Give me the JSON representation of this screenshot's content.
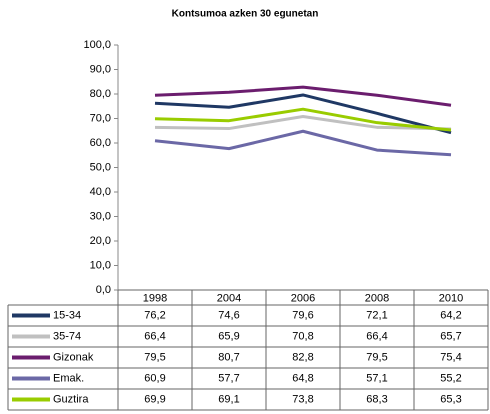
{
  "chart_data": {
    "type": "line",
    "title": "Kontsumoa azken 30 egunetan",
    "categories": [
      "1998",
      "2004",
      "2006",
      "2008",
      "2010"
    ],
    "ylim": [
      0,
      100
    ],
    "yticks": [
      {
        "value": 0,
        "label": "0,0"
      },
      {
        "value": 10,
        "label": "10,0"
      },
      {
        "value": 20,
        "label": "20,0"
      },
      {
        "value": 30,
        "label": "30,0"
      },
      {
        "value": 40,
        "label": "40,0"
      },
      {
        "value": 50,
        "label": "50,0"
      },
      {
        "value": 60,
        "label": "60,0"
      },
      {
        "value": 70,
        "label": "70,0"
      },
      {
        "value": 80,
        "label": "80,0"
      },
      {
        "value": 90,
        "label": "90,0"
      },
      {
        "value": 100,
        "label": "100,0"
      }
    ],
    "series": [
      {
        "name": "15-34",
        "color": "#1f3864",
        "values": [
          76.2,
          74.6,
          79.6,
          72.1,
          64.2
        ],
        "value_labels": [
          "76,2",
          "74,6",
          "79,6",
          "72,1",
          "64,2"
        ]
      },
      {
        "name": "35-74",
        "color": "#c0c0c0",
        "values": [
          66.4,
          65.9,
          70.8,
          66.4,
          65.7
        ],
        "value_labels": [
          "66,4",
          "65,9",
          "70,8",
          "66,4",
          "65,7"
        ]
      },
      {
        "name": "Gizonak",
        "color": "#6b1d6e",
        "values": [
          79.5,
          80.7,
          82.8,
          79.5,
          75.4
        ],
        "value_labels": [
          "79,5",
          "80,7",
          "82,8",
          "79,5",
          "75,4"
        ]
      },
      {
        "name": "Emak.",
        "color": "#6b68a6",
        "values": [
          60.9,
          57.7,
          64.8,
          57.1,
          55.2
        ],
        "value_labels": [
          "60,9",
          "57,7",
          "64,8",
          "57,1",
          "55,2"
        ]
      },
      {
        "name": "Guztira",
        "color": "#99cc00",
        "values": [
          69.9,
          69.1,
          73.8,
          68.3,
          65.3
        ],
        "value_labels": [
          "69,9",
          "69,1",
          "73,8",
          "68,3",
          "65,3"
        ]
      }
    ]
  }
}
